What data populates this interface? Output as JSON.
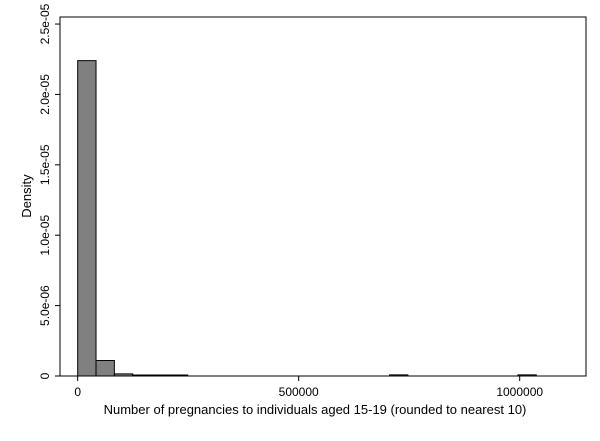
{
  "chart_data": {
    "type": "bar",
    "title": "",
    "xlabel": "Number of pregnancies to individuals aged 15-19 (rounded to nearest 10)",
    "ylabel": "Density",
    "xlim": [
      -40000,
      1150000
    ],
    "ylim": [
      0,
      2.55e-05
    ],
    "xticks": [
      {
        "value": 0,
        "label": "0"
      },
      {
        "value": 500000,
        "label": "500000"
      },
      {
        "value": 1000000,
        "label": "1000000"
      }
    ],
    "yticks": [
      {
        "value": 0,
        "label": "0"
      },
      {
        "value": 5e-06,
        "label": "5.0e-06"
      },
      {
        "value": 1e-05,
        "label": "1.0e-05"
      },
      {
        "value": 1.5e-05,
        "label": "1.5e-05"
      },
      {
        "value": 2e-05,
        "label": "2.0e-05"
      },
      {
        "value": 2.5e-05,
        "label": "2.5e-05"
      }
    ],
    "bin_width": 41500,
    "bins": [
      {
        "x0": 0,
        "x1": 41500,
        "density": 2.24e-05
      },
      {
        "x0": 41500,
        "x1": 83000,
        "density": 1.1e-06
      },
      {
        "x0": 83000,
        "x1": 124500,
        "density": 1.5e-07
      },
      {
        "x0": 124500,
        "x1": 166000,
        "density": 2e-08
      },
      {
        "x0": 166000,
        "x1": 207500,
        "density": 1e-08
      },
      {
        "x0": 207500,
        "x1": 249000,
        "density": 1e-08
      },
      {
        "x0": 705500,
        "x1": 747000,
        "density": 8e-08
      },
      {
        "x0": 996000,
        "x1": 1037500,
        "density": 8e-08
      }
    ],
    "colors": {
      "bar_fill": "#808080",
      "bar_stroke": "#000000"
    },
    "grid": false,
    "legend": "none"
  }
}
